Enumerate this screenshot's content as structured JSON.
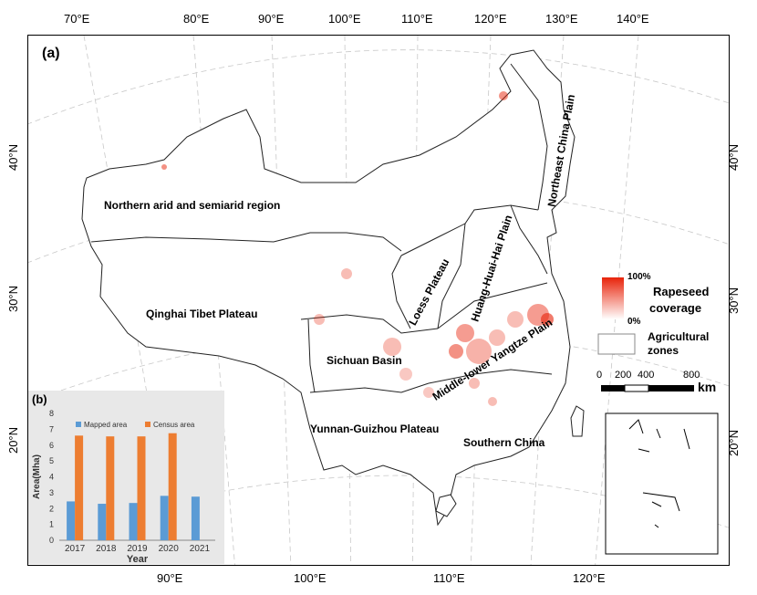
{
  "panel_a_label": "(a)",
  "lon_top": [
    "70°E",
    "80°E",
    "90°E",
    "100°E",
    "110°E",
    "120°E",
    "130°E",
    "140°E"
  ],
  "lon_bottom": [
    "90°E",
    "100°E",
    "110°E",
    "120°E"
  ],
  "lat_left": [
    "40°N",
    "30°N",
    "20°N"
  ],
  "lat_right": [
    "40°N",
    "30°N",
    "20°N"
  ],
  "zones": {
    "northern_arid": "Northern arid and semiarid region",
    "qinghai_tibet": "Qinghai Tibet Plateau",
    "sichuan": "Sichuan Basin",
    "yunnan_guizhou": "Yunnan-Guizhou Plateau",
    "loess": "Loess Plateau",
    "huang_huai_hai": "Huang-Huai-Hai Plain",
    "northeast": "Northeast China Plain",
    "yangtze": "Middle-lower Yangtze Plain",
    "southern": "Southern China"
  },
  "legend": {
    "max_label": "100%",
    "min_label": "0%",
    "coverage_title_1": "Rapeseed",
    "coverage_title_2": "coverage",
    "zones_title_1": "Agricultural",
    "zones_title_2": "zones",
    "gradient_top": "#e8230a",
    "gradient_bottom": "#ffffff"
  },
  "scalebar": {
    "ticks": [
      "0",
      "200",
      "400",
      "800"
    ],
    "unit": "km"
  },
  "chart_data": {
    "type": "bar",
    "panel_label": "(b)",
    "categories": [
      "2017",
      "2018",
      "2019",
      "2020",
      "2021"
    ],
    "series": [
      {
        "name": "Mapped area",
        "color": "#5b9bd5",
        "values": [
          2.45,
          2.3,
          2.35,
          2.8,
          2.75
        ]
      },
      {
        "name": "Census area",
        "color": "#ed7d31",
        "values": [
          6.6,
          6.55,
          6.55,
          6.75,
          null
        ]
      }
    ],
    "ylabel": "Area(Mha)",
    "xlabel": "Year",
    "ylim": [
      0,
      8
    ],
    "yticks": [
      "0",
      "1",
      "2",
      "3",
      "4",
      "5",
      "6",
      "7",
      "8"
    ],
    "legend_position": "top",
    "background": "#e8e8e8"
  }
}
